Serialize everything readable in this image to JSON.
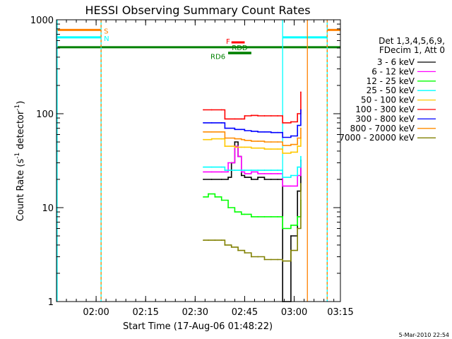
{
  "chart_data": {
    "type": "line",
    "title": "HESSI Observing Summary Count Rates",
    "xlabel": "Start Time (17-Aug-06 01:48:22)",
    "ylabel": "Count Rate (s⁻¹ detector⁻¹)",
    "ylabel_parts": [
      "Count Rate (s",
      "-1",
      " detector",
      "-1",
      ")"
    ],
    "yscale": "log",
    "ylim": [
      1,
      1000
    ],
    "xlim_minutes_after_0148": [
      0,
      86
    ],
    "x_ticks": [
      {
        "label": "02:00",
        "t": 12
      },
      {
        "label": "02:15",
        "t": 27
      },
      {
        "label": "02:30",
        "t": 42
      },
      {
        "label": "02:45",
        "t": 57
      },
      {
        "label": "03:00",
        "t": 72
      },
      {
        "label": "03:15",
        "t": 87
      }
    ],
    "y_ticks": [
      {
        "label": "1",
        "v": 1
      },
      {
        "label": "10",
        "v": 10
      },
      {
        "label": "100",
        "v": 100
      },
      {
        "label": "1000",
        "v": 1000
      }
    ],
    "legend": {
      "placement": "right",
      "header": [
        "Det 1,3,4,5,6,9,",
        "FDecim 1, Att 0"
      ]
    },
    "footer_timestamp": "5-Mar-2010 22:54",
    "flags": [
      {
        "label": "S",
        "color": "#ff8000",
        "level": 780,
        "segments": [
          [
            0,
            13.5
          ],
          [
            82,
            86
          ]
        ]
      },
      {
        "label": "N",
        "color": "#00ffff",
        "level": 650,
        "segments": [
          [
            0,
            13.5
          ],
          [
            68.5,
            82
          ]
        ]
      },
      {
        "label": "",
        "color": "#008000",
        "level": 510,
        "segments": [
          [
            0,
            86
          ]
        ]
      },
      {
        "label": "F",
        "color": "#ff0000",
        "level": 575,
        "segments": [
          [
            53,
            57
          ]
        ]
      },
      {
        "label": "RDD",
        "color": "#008000",
        "level": 445,
        "segments": [
          [
            52,
            59
          ]
        ]
      },
      {
        "label": "RD6",
        "color": "#008000",
        "level": 440,
        "segments": [
          [
            52,
            59
          ]
        ]
      }
    ],
    "vertical_markers": [
      {
        "t": 0.2,
        "color": "#00ffff",
        "dashed": false
      },
      {
        "t": 13.5,
        "color": "#00ffff",
        "dashed": false
      },
      {
        "t": 13.5,
        "color": "#ff8000",
        "dashed": true
      },
      {
        "t": 68.5,
        "color": "#00ffff",
        "dashed": false
      },
      {
        "t": 76,
        "color": "#ff8000",
        "dashed": false
      },
      {
        "t": 82,
        "color": "#00ffff",
        "dashed": false
      },
      {
        "t": 82,
        "color": "#ff8000",
        "dashed": true
      }
    ],
    "series": [
      {
        "name": "3 - 6 keV",
        "color": "#000000",
        "x": [
          44.5,
          47,
          50,
          52,
          53,
          54,
          55,
          56,
          57,
          59,
          61,
          63,
          65,
          67,
          68.3,
          68.5,
          71,
          73,
          74
        ],
        "y": [
          20,
          20,
          20,
          21,
          30,
          50,
          35,
          22,
          21,
          20,
          21,
          20,
          20,
          20,
          20,
          1,
          5,
          15,
          32
        ]
      },
      {
        "name": "6 - 12 keV",
        "color": "#ff00ff",
        "x": [
          44.5,
          47,
          50,
          52,
          54,
          55,
          56,
          57,
          59,
          61,
          63,
          65,
          67,
          68.5,
          71,
          73,
          74
        ],
        "y": [
          24,
          24,
          24,
          30,
          45,
          35,
          24,
          23,
          24,
          23,
          23,
          23,
          23,
          17,
          17,
          22,
          30
        ]
      },
      {
        "name": "12 - 25 keV",
        "color": "#00ff00",
        "x": [
          44.5,
          46,
          48,
          50,
          52,
          54,
          56,
          57,
          59,
          61,
          63,
          65,
          67,
          68.5,
          71,
          73,
          74
        ],
        "y": [
          13,
          14,
          13,
          12,
          10,
          9,
          8.5,
          8.5,
          8,
          8,
          8,
          8,
          8,
          6,
          6.5,
          8,
          12
        ]
      },
      {
        "name": "25 - 50 keV",
        "color": "#00ffff",
        "x": [
          44.5,
          47,
          50,
          51,
          54,
          56,
          57,
          59,
          61,
          63,
          65,
          67,
          68.5,
          71,
          73,
          74
        ],
        "y": [
          27,
          27,
          27,
          25,
          25,
          25,
          25,
          25,
          25,
          25,
          25,
          25,
          21,
          22,
          27,
          35
        ]
      },
      {
        "name": "50 - 100 keV",
        "color": "#ffc800",
        "x": [
          44.5,
          47,
          50,
          51,
          54,
          56,
          57,
          59,
          61,
          63,
          65,
          67,
          68.5,
          71,
          73,
          74
        ],
        "y": [
          53,
          54,
          54,
          45,
          44,
          44,
          44,
          43,
          43,
          42,
          42,
          42,
          38,
          39,
          45,
          55
        ]
      },
      {
        "name": "100 - 300 keV",
        "color": "#ff0000",
        "x": [
          44.5,
          47,
          50,
          51,
          54,
          56,
          57,
          59,
          61,
          63,
          65,
          67,
          68.5,
          71,
          73,
          74
        ],
        "y": [
          110,
          110,
          110,
          88,
          88,
          88,
          95,
          96,
          95,
          95,
          95,
          95,
          80,
          82,
          100,
          170
        ]
      },
      {
        "name": "300 - 800 keV",
        "color": "#0000ff",
        "x": [
          44.5,
          47,
          50,
          51,
          54,
          56,
          57,
          59,
          61,
          63,
          65,
          67,
          68.5,
          71,
          73,
          74
        ],
        "y": [
          80,
          80,
          80,
          70,
          68,
          68,
          66,
          65,
          64,
          64,
          63,
          63,
          56,
          58,
          75,
          110
        ]
      },
      {
        "name": "800 - 7000 keV",
        "color": "#ff8c00",
        "x": [
          44.5,
          47,
          50,
          51,
          54,
          56,
          57,
          59,
          61,
          63,
          65,
          67,
          68.5,
          71,
          73,
          74
        ],
        "y": [
          64,
          64,
          64,
          55,
          54,
          53,
          52,
          51,
          51,
          50,
          50,
          50,
          46,
          47,
          55,
          70
        ]
      },
      {
        "name": "7000 - 20000 keV",
        "color": "#808000",
        "x": [
          44.5,
          46,
          48,
          50,
          51,
          53,
          55,
          57,
          59,
          61,
          63,
          65,
          67,
          68.5,
          71,
          73,
          74
        ],
        "y": [
          4.5,
          4.5,
          4.5,
          4.5,
          4,
          3.8,
          3.5,
          3.3,
          3.0,
          3.0,
          2.8,
          2.8,
          2.8,
          2.7,
          3.5,
          6,
          18
        ]
      }
    ]
  }
}
